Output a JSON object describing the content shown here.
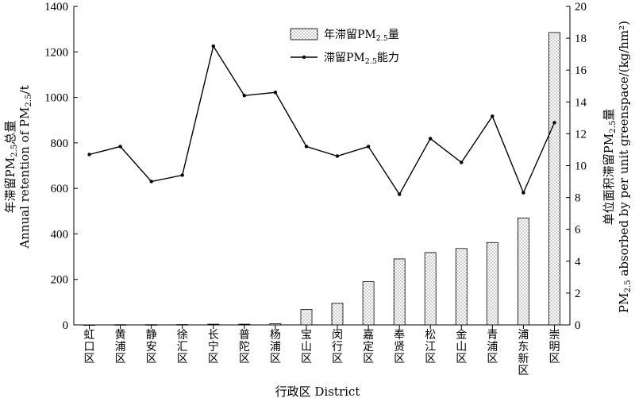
{
  "chart_data": {
    "type": "bar+line",
    "categories": [
      "虹口区",
      "黄浦区",
      "静安区",
      "徐汇区",
      "长宁区",
      "普陀区",
      "杨浦区",
      "宝山区",
      "闵行区",
      "嘉定区",
      "奉贤区",
      "松江区",
      "金山区",
      "青浦区",
      "浦东新区",
      "崇明区"
    ],
    "series": [
      {
        "name": "年滞留PM2.5量",
        "kind": "bar",
        "axis": "left",
        "values": [
          0.5,
          1,
          1,
          1.5,
          3,
          3,
          5,
          68,
          95,
          190,
          290,
          318,
          336,
          362,
          470,
          1285
        ]
      },
      {
        "name": "滞留PM2.5能力",
        "kind": "line",
        "axis": "right",
        "values": [
          10.7,
          11.2,
          9.0,
          9.4,
          17.5,
          14.4,
          14.6,
          11.2,
          10.6,
          11.2,
          8.2,
          11.7,
          10.2,
          13.1,
          8.3,
          12.7
        ]
      }
    ],
    "left_axis": {
      "ylim": [
        0,
        1400
      ],
      "ticks": [
        "0",
        "200",
        "400",
        "600",
        "800",
        "1000",
        "1200",
        "1400"
      ],
      "label_line1": "年滞留PM2.5总量",
      "label_line2": "Annual retention of PM2.5/t"
    },
    "right_axis": {
      "ylim": [
        0,
        20
      ],
      "ticks": [
        "0",
        "2",
        "4",
        "6",
        "8",
        "10",
        "12",
        "14",
        "16",
        "18",
        "20"
      ],
      "label_line1": "单位面积滞留PM2.5量",
      "label_line2": "PM2.5 absorbed by per unit greenspace/(kg/hm²)"
    },
    "xlabel": "行政区 District",
    "legend_position": "top-right",
    "grid": false,
    "colors": {
      "bar_fill": "#ffffff",
      "bar_dots": "#555555",
      "line": "#000000",
      "axis": "#000000"
    }
  }
}
